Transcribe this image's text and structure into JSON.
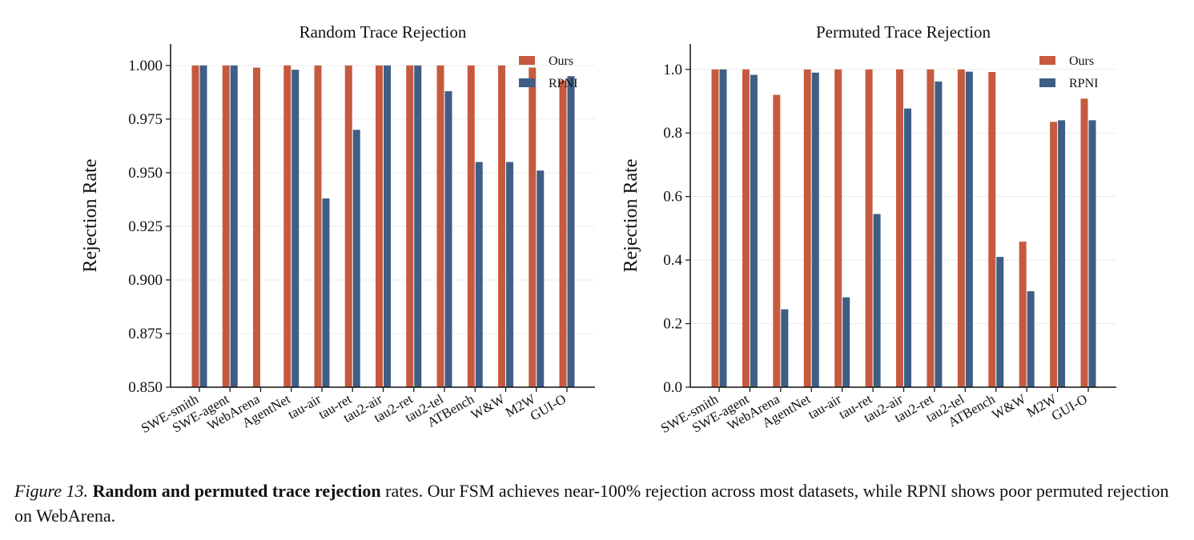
{
  "chart_data": [
    {
      "type": "bar",
      "title": "Random Trace Rejection",
      "ylabel": "Rejection Rate",
      "xlabel": "",
      "ylim": [
        0.85,
        1.01
      ],
      "yticks": [
        "0.850",
        "0.875",
        "0.900",
        "0.925",
        "0.950",
        "0.975",
        "1.000"
      ],
      "categories": [
        "SWE-smith",
        "SWE-agent",
        "WebArena",
        "AgentNet",
        "tau-air",
        "tau-ret",
        "tau2-air",
        "tau2-ret",
        "tau2-tel",
        "ATBench",
        "W&W",
        "M2W",
        "GUI-O"
      ],
      "series": [
        {
          "name": "Ours",
          "color": "#c65a3f",
          "values": [
            1.0,
            1.0,
            0.999,
            1.0,
            1.0,
            1.0,
            1.0,
            1.0,
            1.0,
            1.0,
            1.0,
            0.999,
            0.993
          ]
        },
        {
          "name": "RPNI",
          "color": "#3f5e85",
          "values": [
            1.0,
            1.0,
            0.85,
            0.998,
            0.938,
            0.97,
            1.0,
            1.0,
            0.988,
            0.955,
            0.955,
            0.951,
            0.995
          ]
        }
      ],
      "grid": true,
      "legend": "top-right"
    },
    {
      "type": "bar",
      "title": "Permuted Trace Rejection",
      "ylabel": "Rejection Rate",
      "xlabel": "",
      "ylim": [
        0.0,
        1.08
      ],
      "yticks": [
        "0.0",
        "0.2",
        "0.4",
        "0.6",
        "0.8",
        "1.0"
      ],
      "categories": [
        "SWE-smith",
        "SWE-agent",
        "WebArena",
        "AgentNet",
        "tau-air",
        "tau-ret",
        "tau2-air",
        "tau2-ret",
        "tau2-tel",
        "ATBench",
        "W&W",
        "M2W",
        "GUI-O"
      ],
      "series": [
        {
          "name": "Ours",
          "color": "#c65a3f",
          "values": [
            1.0,
            1.0,
            0.92,
            1.0,
            1.0,
            1.0,
            1.0,
            1.0,
            1.0,
            0.992,
            0.458,
            0.835,
            0.908
          ]
        },
        {
          "name": "RPNI",
          "color": "#3f5e85",
          "values": [
            1.0,
            0.983,
            0.245,
            0.99,
            0.283,
            0.545,
            0.877,
            0.962,
            0.993,
            0.41,
            0.302,
            0.84,
            0.84
          ]
        }
      ],
      "grid": true,
      "legend": "top-right"
    }
  ],
  "caption": {
    "figure_label": "Figure 13.",
    "bold_text": "Random and permuted trace rejection",
    "rest_text": " rates. Our FSM achieves near-100% rejection across most datasets, while RPNI shows poor permuted rejection on WebArena."
  }
}
